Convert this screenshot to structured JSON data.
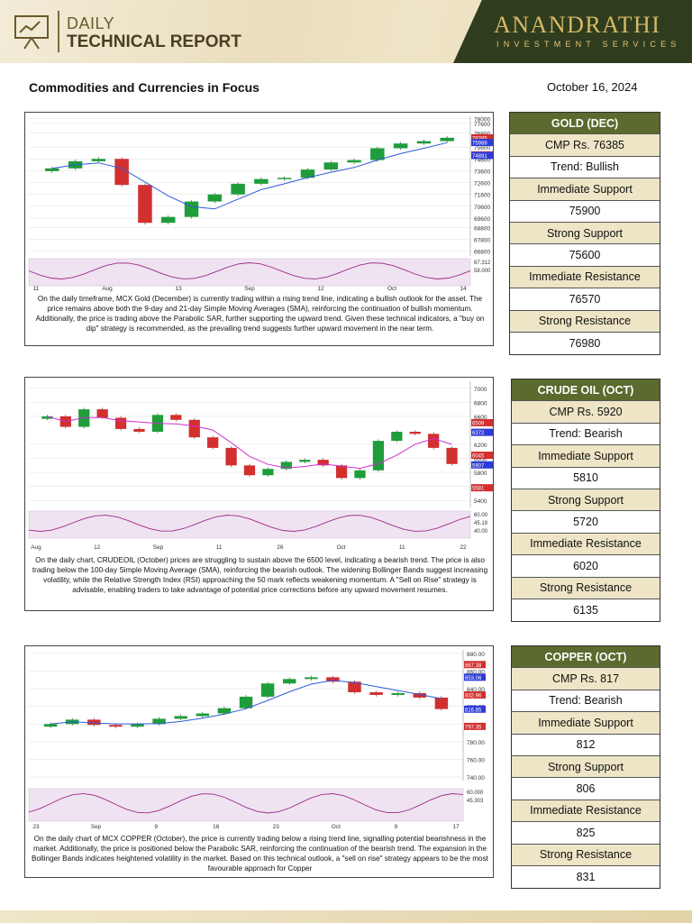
{
  "header": {
    "daily": "DAILY",
    "report": "TECHNICAL REPORT",
    "brand": "ANANDRATHI",
    "brand_sub": "INVESTMENT SERVICES"
  },
  "section_title": "Commodities and Currencies in Focus",
  "date": "October 16, 2024",
  "commodities": [
    {
      "name": "GOLD (DEC)",
      "rows": [
        "CMP Rs. 76385",
        "Trend:  Bullish",
        "Immediate Support",
        "75900",
        "Strong Support",
        "75600",
        "Immediate Resistance",
        "76570",
        "Strong Resistance",
        "76980"
      ],
      "description": "On the daily timeframe, MCX Gold (December) is currently trading within a rising trend line, indicating a bullish outlook for the asset. The price remains above both the 9-day and 21-day Simple Moving Averages (SMA), reinforcing the continuation of bullish momentum. Additionally, the price is trading above the Parabolic SAR, further supporting the upward trend. Given these technical indicators, a \"buy on dip\" strategy is recommended, as the prevailing trend suggests further upward movement in the near term."
    },
    {
      "name": "CRUDE OIL (OCT)",
      "rows": [
        "CMP Rs. 5920",
        "Trend: Bearish",
        "Immediate Support",
        "5810",
        "Strong Support",
        "5720",
        "Immediate Resistance",
        "6020",
        "Strong Resistance",
        "6135"
      ],
      "description": "On the daily chart, CRUDEOIL (October) prices are struggling to sustain above the 6500 level, indicating a bearish trend. The price is also trading below the 100-day Simple Moving Average (SMA), reinforcing the bearish outlook. The widening Bollinger Bands suggest increasing volatility, while the Relative Strength Index (RSI) approaching the 50 mark reflects weakening momentum. A \"Sell on Rise\" strategy is advisable, enabling traders to take advantage of potential price corrections before any upward movement resumes."
    },
    {
      "name": "COPPER (OCT)",
      "rows": [
        "CMP Rs. 817",
        "Trend: Bearish",
        "Immediate Support",
        "812",
        "Strong Support",
        "806",
        "Immediate Resistance",
        "825",
        "Strong Resistance",
        "831"
      ],
      "description": "On the daily chart of MCX COPPER (October), the price is currently trading below a rising trend line, signalling potential bearishness in the market. Additionally, the price is positioned below the Parabolic SAR, reinforcing the continuation of the bearish trend. The expansion in the Bollinger Bands indicates heightened volatility in the market. Based on this technical outlook, a \"sell on rise\" strategy appears to be the most favourable approach for Copper"
    }
  ],
  "chart_data": [
    {
      "type": "line",
      "series": [
        {
          "values": [
            73800,
            74400,
            74600,
            72400,
            69200,
            69700,
            71000,
            71600,
            72500,
            72900,
            73000,
            73700,
            74300,
            74500,
            75500,
            75900,
            76100,
            76385
          ]
        }
      ],
      "x_ticks": [
        "11",
        "Aug",
        "13",
        "Sep",
        "12",
        "Oct",
        "14"
      ],
      "y_ticks": [
        "78000",
        "77600",
        "76800",
        "75600",
        "74600",
        "73600",
        "72600",
        "71600",
        "70600",
        "69600",
        "68800",
        "67800",
        "66800"
      ],
      "price_labels": [
        "76385",
        "75988",
        "74938",
        "74891"
      ],
      "rsi_labels": [
        "67.312",
        "58.000"
      ],
      "ylim": [
        66400,
        78200
      ],
      "colors": {
        "up": "#1f9d3a",
        "down": "#d22f2f",
        "sma": "#2e5bd8"
      }
    },
    {
      "type": "line",
      "series": [
        {
          "values": [
            6600,
            6450,
            6700,
            6580,
            6420,
            6380,
            6620,
            6550,
            6300,
            6150,
            5900,
            5760,
            5850,
            5950,
            5980,
            5900,
            5720,
            5830,
            6250,
            6380,
            6350,
            6150,
            5920
          ]
        }
      ],
      "x_ticks": [
        "Aug",
        "12",
        "Sep",
        "11",
        "26",
        "Oct",
        "11",
        "22"
      ],
      "y_ticks": [
        "7000",
        "6800",
        "6600",
        "6200",
        "6000",
        "5800",
        "5600",
        "5400"
      ],
      "price_labels": [
        "6509",
        "6372",
        "6045",
        "5907",
        "5581"
      ],
      "rsi_labels": [
        "60.00",
        "45.19",
        "40.00"
      ],
      "ylim": [
        5300,
        7100
      ],
      "colors": {
        "up": "#1f9d3a",
        "down": "#d22f2f",
        "sma": "#d02fd0"
      }
    },
    {
      "type": "line",
      "series": [
        {
          "values": [
            800,
            805,
            799,
            797,
            800,
            806,
            809,
            812,
            818,
            831,
            846,
            851,
            853,
            848,
            836,
            833,
            835,
            830,
            817
          ]
        }
      ],
      "x_ticks": [
        "23",
        "Sep",
        "9",
        "16",
        "23",
        "Oct",
        "9",
        "17"
      ],
      "y_ticks": [
        "880.00",
        "860.00",
        "840.00",
        "820.00",
        "800.00",
        "780.00",
        "760.00",
        "740.00"
      ],
      "price_labels": [
        "867.38",
        "853.06",
        "832.96",
        "816.85",
        "797.35"
      ],
      "rsi_labels": [
        "60.000",
        "45.303"
      ],
      "ylim": [
        736,
        884
      ],
      "colors": {
        "up": "#1f9d3a",
        "down": "#d22f2f",
        "sma": "#2e5bd8"
      }
    }
  ]
}
